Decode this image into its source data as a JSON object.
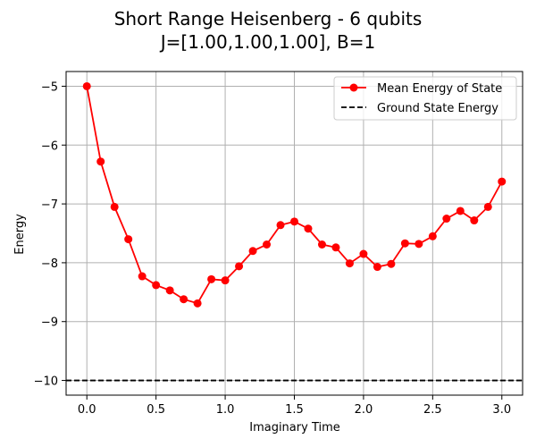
{
  "chart_data": {
    "type": "line",
    "title": "Short Range Heisenberg - 6 qubits",
    "subtitle": "J=[1.00,1.00,1.00], B=1",
    "xlabel": "Imaginary Time",
    "ylabel": "Energy",
    "xlim": [
      -0.15,
      3.15
    ],
    "ylim": [
      -10.25,
      -4.75
    ],
    "x_ticks": [
      "0.0",
      "0.5",
      "1.0",
      "1.5",
      "2.0",
      "2.5",
      "3.0"
    ],
    "x_tick_values": [
      0,
      0.5,
      1.0,
      1.5,
      2.0,
      2.5,
      3.0
    ],
    "y_ticks": [
      "−5",
      "−6",
      "−7",
      "−8",
      "−9",
      "−10"
    ],
    "y_tick_values": [
      -5,
      -6,
      -7,
      -8,
      -9,
      -10
    ],
    "grid": true,
    "legend_position": "top-right",
    "series": [
      {
        "name": "Mean Energy of State",
        "color": "#ff0000",
        "style": "solid-marker",
        "x": [
          0.0,
          0.1,
          0.2,
          0.3,
          0.4,
          0.5,
          0.6,
          0.7,
          0.8,
          0.9,
          1.0,
          1.1,
          1.2,
          1.3,
          1.4,
          1.5,
          1.6,
          1.7,
          1.8,
          1.9,
          2.0,
          2.1,
          2.2,
          2.3,
          2.4,
          2.5,
          2.6,
          2.7,
          2.8,
          2.9,
          3.0
        ],
        "y": [
          -5.0,
          -6.28,
          -7.05,
          -7.6,
          -8.23,
          -8.38,
          -8.47,
          -8.62,
          -8.69,
          -8.28,
          -8.3,
          -8.06,
          -7.8,
          -7.69,
          -7.36,
          -7.3,
          -7.42,
          -7.69,
          -7.74,
          -8.01,
          -7.85,
          -8.07,
          -8.02,
          -7.67,
          -7.68,
          -7.55,
          -7.25,
          -7.12,
          -7.28,
          -7.05,
          -6.62
        ]
      },
      {
        "name": "Ground State Energy",
        "color": "#000000",
        "style": "dashed",
        "y_const": -10.0
      }
    ]
  }
}
